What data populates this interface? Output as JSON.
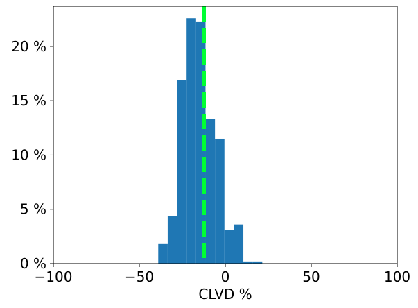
{
  "chart_data": {
    "type": "bar",
    "title": "",
    "xlabel": "CLVD %",
    "ylabel": "",
    "xlim": [
      -100,
      100
    ],
    "ylim": [
      0,
      23.7
    ],
    "x_ticks": [
      -100,
      -50,
      0,
      50,
      100
    ],
    "x_tick_labels": [
      "−100",
      "−50",
      "0",
      "50",
      "100"
    ],
    "y_ticks": [
      0,
      5,
      10,
      15,
      20
    ],
    "y_tick_labels": [
      "0 %",
      "5 %",
      "10 %",
      "15 %",
      "20 %"
    ],
    "bins": [
      {
        "x0": -39.0,
        "x1": -33.5,
        "value": 1.8
      },
      {
        "x0": -33.5,
        "x1": -28.0,
        "value": 4.4
      },
      {
        "x0": -28.0,
        "x1": -22.5,
        "value": 16.9
      },
      {
        "x0": -22.5,
        "x1": -17.0,
        "value": 22.6
      },
      {
        "x0": -17.0,
        "x1": -11.5,
        "value": 22.3
      },
      {
        "x0": -11.5,
        "x1": -6.0,
        "value": 13.3
      },
      {
        "x0": -6.0,
        "x1": -0.5,
        "value": 11.5
      },
      {
        "x0": -0.5,
        "x1": 5.0,
        "value": 3.1
      },
      {
        "x0": 5.0,
        "x1": 10.5,
        "value": 3.6
      },
      {
        "x0": 10.5,
        "x1": 16.0,
        "value": 0.2
      },
      {
        "x0": 16.0,
        "x1": 21.5,
        "value": 0.2
      }
    ],
    "reference_line": {
      "x": -12.5,
      "style": "dashed"
    },
    "grid": false,
    "colors": {
      "bars": "#1f77b4",
      "reference_line": "#00ff33",
      "axes": "#000000"
    }
  }
}
